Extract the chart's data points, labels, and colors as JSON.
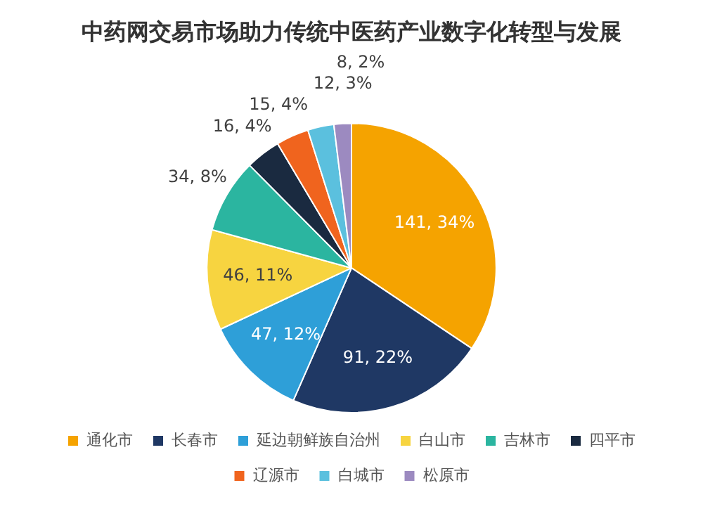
{
  "chart_data": {
    "type": "pie",
    "title": "中药网交易市场助力传统中医药产业数字化转型与发展",
    "categories": [
      "通化市",
      "长春市",
      "延边朝鲜族自治州",
      "白山市",
      "吉林市",
      "四平市",
      "辽源市",
      "白城市",
      "松原市"
    ],
    "values": [
      141,
      91,
      47,
      46,
      34,
      16,
      15,
      12,
      8
    ],
    "value_labels": [
      "141, 34%",
      "91, 22%",
      "47, 12%",
      "46, 11%",
      "34, 8%",
      "16, 4%",
      "15, 4%",
      "12, 3%",
      "8, 2%"
    ],
    "colors": [
      "#f5a300",
      "#1f3864",
      "#2e9fd8",
      "#f7d440",
      "#2bb5a0",
      "#1a2a40",
      "#f0641e",
      "#5bc0de",
      "#9c8ac0"
    ],
    "legend": "bottom"
  }
}
